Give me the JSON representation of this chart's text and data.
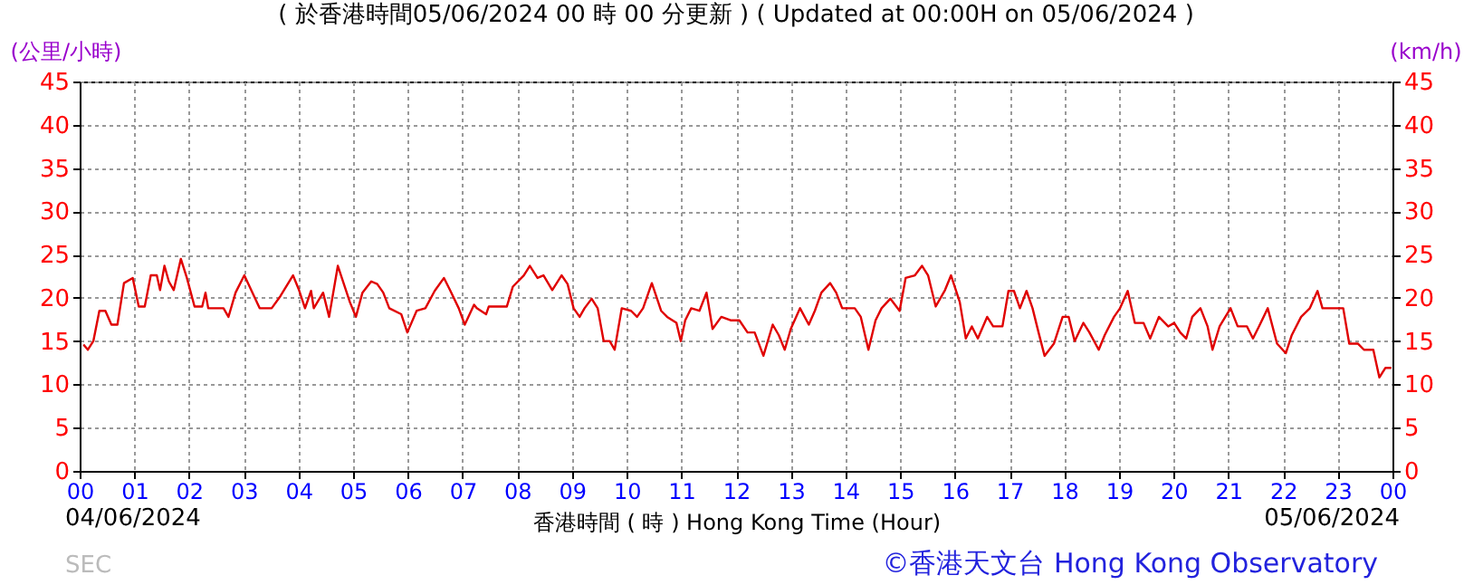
{
  "chart_data": {
    "type": "line",
    "title": "( 於香港時間05/06/2024 00 時 00 分更新 ) ( Updated at 00:00H on 05/06/2024 )",
    "xlabel": "香港時間 ( 時 ) Hong Kong Time (Hour)",
    "ylabel": "(公里/小時)",
    "y2label": "(km/h)",
    "annotations": [
      "04/06/2024",
      "05/06/2024",
      "©香港天文台 Hong Kong Observatory",
      "SEC"
    ],
    "x": [
      0.07,
      0.15,
      0.25,
      0.36,
      0.47,
      0.58,
      0.69,
      0.81,
      0.97,
      1.08,
      1.19,
      1.3,
      1.41,
      1.47,
      1.55,
      1.63,
      1.72,
      1.85,
      1.96,
      2.1,
      2.24,
      2.3,
      2.35,
      2.63,
      2.72,
      2.85,
      3.01,
      3.18,
      3.29,
      3.51,
      3.67,
      3.9,
      4.01,
      4.12,
      4.23,
      4.28,
      4.45,
      4.56,
      4.72,
      4.83,
      4.94,
      5.05,
      5.17,
      5.33,
      5.44,
      5.55,
      5.66,
      5.88,
      5.99,
      6.16,
      6.32,
      6.49,
      6.66,
      6.77,
      6.93,
      7.04,
      7.21,
      7.26,
      7.43,
      7.48,
      7.81,
      7.92,
      8.12,
      8.23,
      8.37,
      8.48,
      8.64,
      8.81,
      8.92,
      9.03,
      9.14,
      9.23,
      9.36,
      9.47,
      9.58,
      9.69,
      9.78,
      9.91,
      10.08,
      10.19,
      10.3,
      10.46,
      10.63,
      10.74,
      10.91,
      10.99,
      11.07,
      11.18,
      11.33,
      11.46,
      11.57,
      11.73,
      11.9,
      12.06,
      12.21,
      12.34,
      12.5,
      12.67,
      12.78,
      12.89,
      13,
      13.17,
      13.33,
      13.44,
      13.56,
      13.72,
      13.83,
      13.94,
      14.17,
      14.28,
      14.42,
      14.55,
      14.66,
      14.82,
      14.99,
      15.1,
      15.27,
      15.4,
      15.51,
      15.65,
      15.82,
      15.93,
      16.09,
      16.2,
      16.31,
      16.42,
      16.59,
      16.7,
      16.87,
      16.98,
      17.08,
      17.19,
      17.31,
      17.42,
      17.53,
      17.64,
      17.81,
      17.97,
      18.08,
      18.19,
      18.35,
      18.46,
      18.63,
      18.74,
      18.91,
      19.02,
      19.16,
      19.29,
      19.45,
      19.57,
      19.73,
      19.9,
      20.01,
      20.12,
      20.23,
      20.34,
      20.49,
      20.62,
      20.71,
      20.84,
      21.04,
      21.17,
      21.34,
      21.45,
      21.56,
      21.72,
      21.89,
      22.05,
      22.16,
      22.33,
      22.49,
      22.63,
      22.72,
      23.1,
      23.21,
      23.37,
      23.48,
      23.65,
      23.76,
      23.87,
      23.98
    ],
    "values": [
      14.6,
      14,
      15,
      18.5,
      18.5,
      16.9,
      16.9,
      21.7,
      22.3,
      19,
      19,
      22.6,
      22.6,
      20.9,
      23.7,
      21.9,
      20.9,
      24.5,
      22.3,
      19,
      19,
      20.6,
      18.8,
      18.8,
      17.8,
      20.6,
      22.6,
      20.3,
      18.8,
      18.8,
      20.2,
      22.6,
      20.9,
      18.8,
      20.8,
      18.8,
      20.6,
      17.8,
      23.7,
      21.6,
      19.5,
      17.8,
      20.6,
      21.9,
      21.6,
      20.6,
      18.8,
      18.1,
      16,
      18.5,
      18.8,
      20.8,
      22.3,
      20.9,
      18.8,
      16.9,
      19.2,
      18.8,
      18.1,
      19,
      19,
      21.3,
      22.6,
      23.7,
      22.3,
      22.6,
      20.9,
      22.6,
      21.6,
      18.8,
      17.8,
      18.8,
      19.9,
      18.8,
      15,
      15,
      14,
      18.8,
      18.5,
      17.8,
      18.8,
      21.7,
      18.5,
      17.8,
      17.1,
      15,
      17.4,
      18.8,
      18.5,
      20.6,
      16.4,
      17.8,
      17.4,
      17.4,
      16,
      16,
      13.3,
      16.9,
      15.7,
      14,
      16.4,
      18.8,
      16.9,
      18.5,
      20.6,
      21.7,
      20.6,
      18.8,
      18.8,
      17.8,
      14,
      17.4,
      18.8,
      19.9,
      18.5,
      22.3,
      22.6,
      23.7,
      22.6,
      19,
      20.9,
      22.6,
      19.5,
      15.3,
      16.7,
      15.3,
      17.8,
      16.7,
      16.7,
      20.8,
      20.8,
      18.8,
      20.8,
      18.8,
      16,
      13.3,
      14.7,
      17.8,
      17.8,
      15,
      17.1,
      16,
      14,
      15.7,
      17.8,
      18.8,
      20.8,
      17.1,
      17.1,
      15.3,
      17.8,
      16.7,
      17.1,
      16,
      15.3,
      17.8,
      18.8,
      16.7,
      14,
      16.7,
      18.8,
      16.7,
      16.7,
      15.3,
      16.7,
      18.8,
      14.7,
      13.6,
      15.7,
      17.8,
      18.8,
      20.8,
      18.8,
      18.8,
      14.7,
      14.7,
      14,
      14,
      10.8,
      11.9,
      11.9
    ],
    "color": "#e00000",
    "xlim": [
      0,
      24
    ],
    "xticks": [
      {
        "value": 0,
        "label": "00"
      },
      {
        "value": 1,
        "label": "01"
      },
      {
        "value": 2,
        "label": "02"
      },
      {
        "value": 3,
        "label": "03"
      },
      {
        "value": 4,
        "label": "04"
      },
      {
        "value": 5,
        "label": "05"
      },
      {
        "value": 6,
        "label": "06"
      },
      {
        "value": 7,
        "label": "07"
      },
      {
        "value": 8,
        "label": "08"
      },
      {
        "value": 9,
        "label": "09"
      },
      {
        "value": 10,
        "label": "10"
      },
      {
        "value": 11,
        "label": "11"
      },
      {
        "value": 12,
        "label": "12"
      },
      {
        "value": 13,
        "label": "13"
      },
      {
        "value": 14,
        "label": "14"
      },
      {
        "value": 15,
        "label": "15"
      },
      {
        "value": 16,
        "label": "16"
      },
      {
        "value": 17,
        "label": "17"
      },
      {
        "value": 18,
        "label": "18"
      },
      {
        "value": 19,
        "label": "19"
      },
      {
        "value": 20,
        "label": "20"
      },
      {
        "value": 21,
        "label": "21"
      },
      {
        "value": 22,
        "label": "22"
      },
      {
        "value": 23,
        "label": "23"
      },
      {
        "value": 24,
        "label": "00"
      }
    ],
    "ylim": [
      0,
      45
    ],
    "yticks": [
      0,
      5,
      10,
      15,
      20,
      25,
      30,
      35,
      40,
      45
    ],
    "y2lim": [
      0,
      45
    ],
    "y2ticks": [
      0,
      5,
      10,
      15,
      20,
      25,
      30,
      35,
      40,
      45
    ],
    "grid": true
  }
}
